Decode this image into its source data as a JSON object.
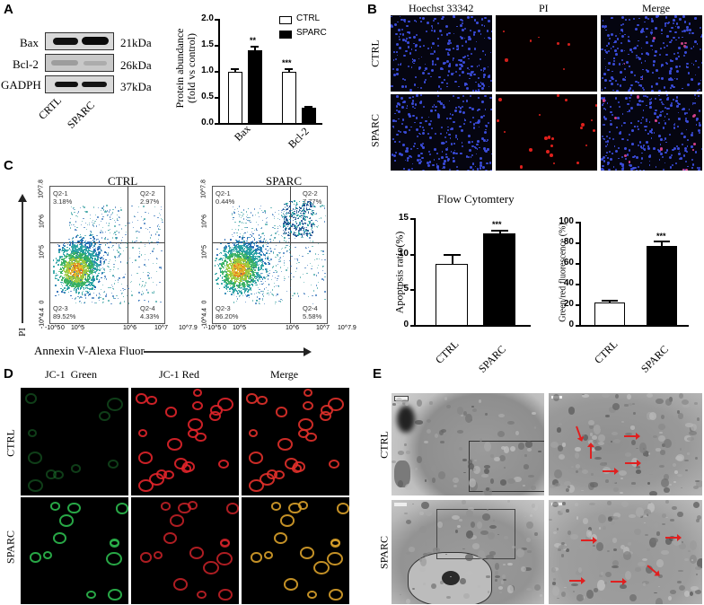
{
  "panels": {
    "A": {
      "label": "A",
      "blot": {
        "rows": [
          {
            "protein": "Bax",
            "size": "21kDa"
          },
          {
            "protein": "Bcl-2",
            "size": "26kDa"
          },
          {
            "protein": "GADPH",
            "size": "37kDa"
          }
        ],
        "lanes": [
          "CRTL",
          "SPARC"
        ]
      }
    },
    "B": {
      "label": "B",
      "columns": [
        "Hoechst 33342",
        "PI",
        "Merge"
      ],
      "rows": [
        "CTRL",
        "SPARC"
      ]
    },
    "C": {
      "label": "C",
      "plots": [
        {
          "title": "CTRL",
          "q1": "Q2-1",
          "q1v": "3.18%",
          "q2": "Q2-2",
          "q2v": "2.97%",
          "q3": "Q2-3",
          "q3v": "89.52%",
          "q4": "Q2-4",
          "q4v": "4.33%"
        },
        {
          "title": "SPARC",
          "q1": "Q2-1",
          "q1v": "0.44%",
          "q2": "Q2-2",
          "q2v": "7.77%",
          "q3": "Q2-3",
          "q3v": "86.20%",
          "q4": "Q2-4",
          "q4v": "5.58%"
        }
      ],
      "y_ticks": [
        "10^7.8",
        "10^6",
        "10^5",
        "0",
        "-10^4.4"
      ],
      "x_ticks": [
        "-10^5",
        "0",
        "10^5",
        "10^6",
        "10^7",
        "10^7.9"
      ],
      "y_axis_label": "PI",
      "x_axis_label": "Annexin V-Alexa Fluor",
      "summary_title": "Flow Cytomtery"
    },
    "D": {
      "label": "D",
      "columns": [
        "JC-1  Green",
        "JC-1 Red",
        "Merge"
      ],
      "rows": [
        "CTRL",
        "SPARC"
      ]
    },
    "E": {
      "label": "E",
      "rows": [
        "CTRL",
        "SPARC"
      ]
    }
  },
  "chart_data": [
    {
      "type": "bar",
      "title": "",
      "categories": [
        "Bax",
        "Bcl-2"
      ],
      "series": [
        {
          "name": "CTRL",
          "values": [
            1.0,
            1.0
          ],
          "errors": [
            0.05,
            0.06
          ],
          "color": "#ffffff"
        },
        {
          "name": "SPARC",
          "values": [
            1.4,
            0.3
          ],
          "errors": [
            0.07,
            0.03
          ],
          "color": "#000000"
        }
      ],
      "significance": [
        {
          "category": "Bax",
          "mark": "**"
        },
        {
          "category": "Bcl-2",
          "mark": "***"
        }
      ],
      "xlabel": "",
      "ylabel": "Protein abundance (fold vs control)",
      "ylim": [
        0,
        2.0
      ],
      "yticks": [
        "0.0",
        "0.5",
        "1.0",
        "1.5",
        "2.0"
      ],
      "legend": [
        "CTRL",
        "SPARC"
      ],
      "legend_position": "top-right"
    },
    {
      "type": "bar",
      "title": "Flow Cytomtery",
      "categories": [
        "CTRL",
        "SPARC"
      ],
      "values": [
        8.6,
        12.8
      ],
      "errors": [
        1.4,
        0.6
      ],
      "significance": [
        {
          "category": "SPARC",
          "mark": "***"
        }
      ],
      "xlabel": "",
      "ylabel": "Apoptpsis  ratio(%)",
      "ylim": [
        0,
        15
      ],
      "yticks": [
        "0",
        "5",
        "10",
        "15"
      ]
    },
    {
      "type": "bar",
      "title": "",
      "categories": [
        "CTRL",
        "SPARC"
      ],
      "values": [
        22,
        77
      ],
      "errors": [
        2.5,
        5.5
      ],
      "significance": [
        {
          "category": "SPARC",
          "mark": "***"
        }
      ],
      "xlabel": "",
      "ylabel": "Green/red fluorescence (%)",
      "ylim": [
        0,
        100
      ],
      "yticks": [
        "0",
        "20",
        "40",
        "60",
        "80",
        "100"
      ]
    }
  ],
  "chart_labels": {
    "c1": {
      "ylabel1": "Protein abundance",
      "ylabel2": "(fold vs control)",
      "sig1": "**",
      "sig2": "***",
      "leg1": "CTRL",
      "leg2": "SPARC",
      "cat1": "Bax",
      "cat2": "Bcl-2",
      "t0": "0.0",
      "t1": "0.5",
      "t2": "1.0",
      "t3": "1.5",
      "t4": "2.0"
    },
    "c2": {
      "ylabel": "Apoptpsis  ratio(%)",
      "sig": "***",
      "cat1": "CTRL",
      "cat2": "SPARC",
      "t0": "0",
      "t1": "5",
      "t2": "10",
      "t3": "15"
    },
    "c3": {
      "ylabel": "Green/red fluorescence (%)",
      "sig": "***",
      "cat1": "CTRL",
      "cat2": "SPARC",
      "t0": "0",
      "t1": "20",
      "t2": "40",
      "t3": "60",
      "t4": "80",
      "t5": "100"
    }
  }
}
